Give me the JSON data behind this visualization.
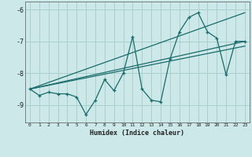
{
  "xlabel": "Humidex (Indice chaleur)",
  "bg_color": "#cce8e8",
  "line_color": "#1a6b6b",
  "grid_color": "#aacfcf",
  "xlim": [
    -0.5,
    23.5
  ],
  "ylim": [
    -9.55,
    -5.75
  ],
  "yticks": [
    -9,
    -8,
    -7,
    -6
  ],
  "xticks": [
    0,
    1,
    2,
    3,
    4,
    5,
    6,
    7,
    8,
    9,
    10,
    11,
    12,
    13,
    14,
    15,
    16,
    17,
    18,
    19,
    20,
    21,
    22,
    23
  ],
  "scatter_x": [
    0,
    1,
    2,
    3,
    4,
    5,
    6,
    7,
    8,
    9,
    10,
    11,
    12,
    13,
    14,
    15,
    16,
    17,
    18,
    19,
    20,
    21,
    22,
    23
  ],
  "scatter_y": [
    -8.5,
    -8.7,
    -8.6,
    -8.65,
    -8.65,
    -8.75,
    -9.3,
    -8.85,
    -8.2,
    -8.55,
    -8.0,
    -6.85,
    -8.5,
    -8.85,
    -8.9,
    -7.55,
    -6.7,
    -6.25,
    -6.1,
    -6.7,
    -6.9,
    -8.05,
    -7.0,
    -7.0
  ],
  "line1_x": [
    0,
    23
  ],
  "line1_y": [
    -8.5,
    -7.0
  ],
  "line2_x": [
    0,
    23
  ],
  "line2_y": [
    -8.5,
    -6.1
  ],
  "line3_x": [
    0,
    23
  ],
  "line3_y": [
    -8.5,
    -7.15
  ]
}
